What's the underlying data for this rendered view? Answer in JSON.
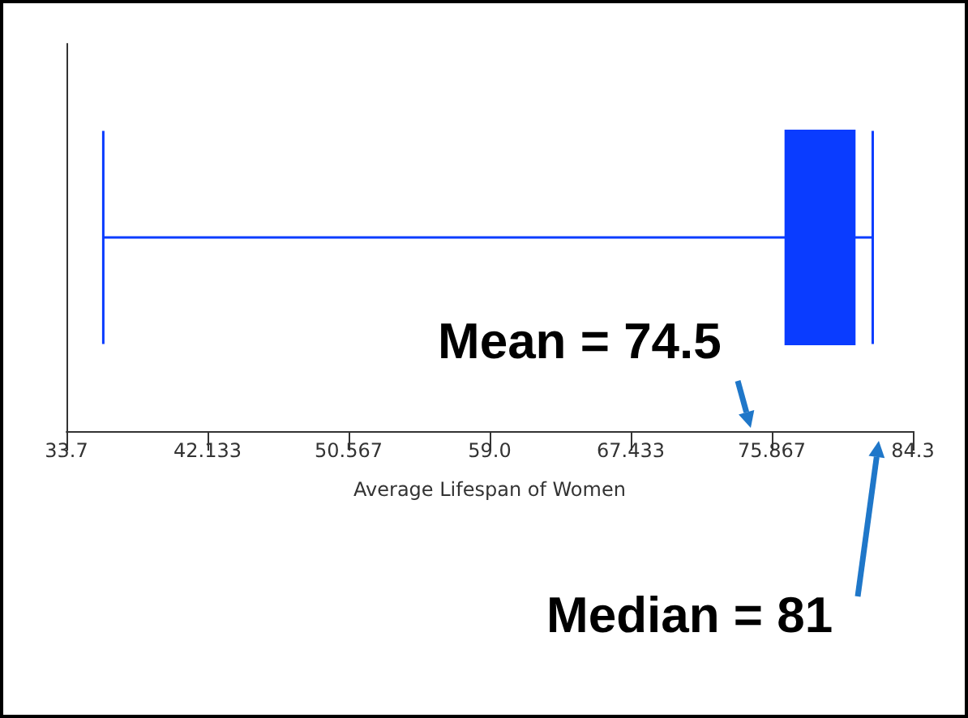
{
  "chart_data": {
    "type": "box",
    "orientation": "horizontal",
    "categories": [
      null
    ],
    "color": "#0a3cff",
    "boxes": [
      {
        "low": 35.9,
        "q1": 76.7,
        "q3": 80.8,
        "high": 81.9
      }
    ],
    "xlabel": "Average Lifespan of Women",
    "xlim": [
      33.7,
      84.3
    ],
    "xticks": [
      33.7,
      42.133,
      50.567,
      {
        "value": 59,
        "label": "59.0"
      },
      67.433,
      75.867,
      84.3
    ],
    "tick_labels": "x",
    "grid": false,
    "annotations": [
      "Mean = 74.5",
      "Median = 81"
    ]
  }
}
